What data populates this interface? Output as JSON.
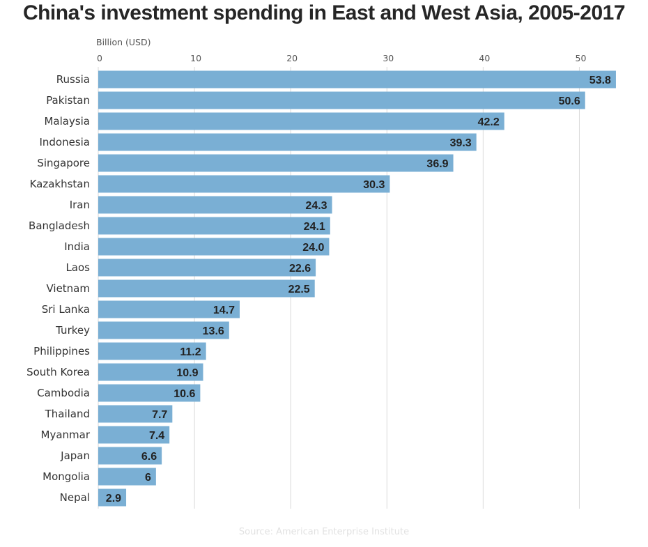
{
  "title": "China's investment spending in East and West Asia, 2005-2017",
  "source": "Source: American Enterprise Institute",
  "colors": {
    "bar": "#7aafd4",
    "grid": "#d9d9d9"
  },
  "chart_data": {
    "type": "bar",
    "orientation": "horizontal",
    "title": "China's investment spending in East and West Asia, 2005-2017",
    "axis_label": "Billion (USD)",
    "xlim": [
      0,
      54.6
    ],
    "ticks": [
      0,
      10,
      20,
      30,
      40,
      50
    ],
    "grid": true,
    "categories": [
      "Russia",
      "Pakistan",
      "Malaysia",
      "Indonesia",
      "Singapore",
      "Kazakhstan",
      "Iran",
      "Bangladesh",
      "India",
      "Laos",
      "Vietnam",
      "Sri Lanka",
      "Turkey",
      "Philippines",
      "South Korea",
      "Cambodia",
      "Thailand",
      "Myanmar",
      "Japan",
      "Mongolia",
      "Nepal"
    ],
    "values": [
      53.8,
      50.6,
      42.2,
      39.3,
      36.9,
      30.3,
      24.3,
      24.1,
      24.0,
      22.6,
      22.5,
      14.7,
      13.6,
      11.2,
      10.9,
      10.6,
      7.7,
      7.4,
      6.6,
      6,
      2.9
    ],
    "value_labels": [
      "53.8",
      "50.6",
      "42.2",
      "39.3",
      "36.9",
      "30.3",
      "24.3",
      "24.1",
      "24.0",
      "22.6",
      "22.5",
      "14.7",
      "13.6",
      "11.2",
      "10.9",
      "10.6",
      "7.7",
      "7.4",
      "6.6",
      "6",
      "2.9"
    ]
  }
}
